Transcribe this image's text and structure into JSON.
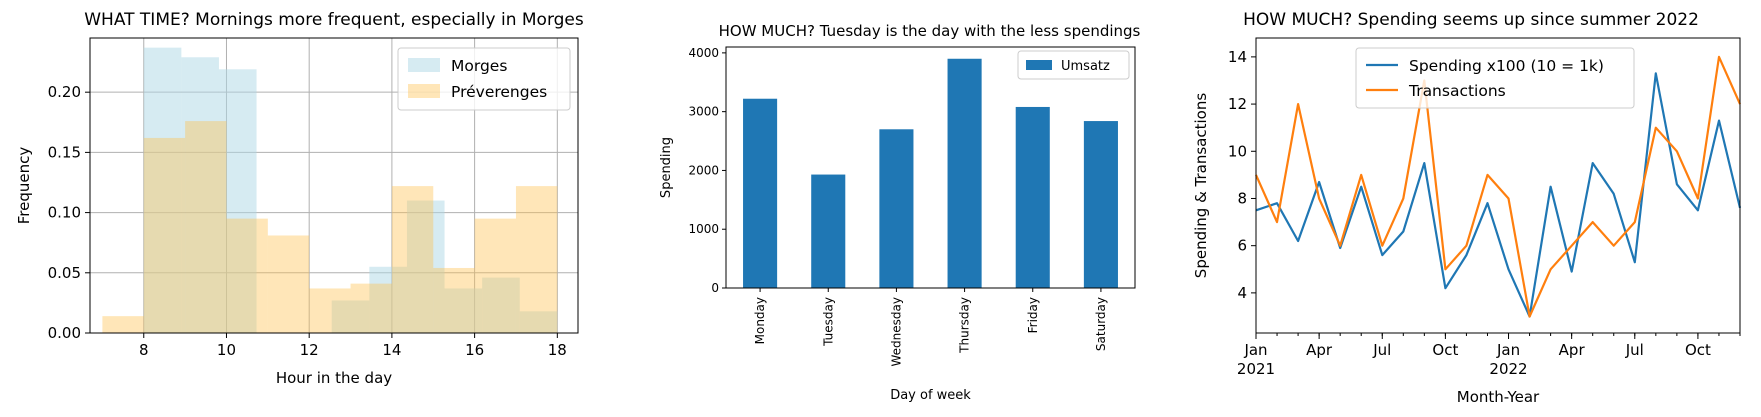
{
  "chart_data": [
    {
      "type": "histogram",
      "title": "WHAT TIME? Mornings more frequent, especially in Morges",
      "xlabel": "Hour in the day",
      "ylabel": "Frequency",
      "xlim": [
        6.7,
        18.5
      ],
      "ylim": [
        0,
        0.245
      ],
      "xticks": [
        8,
        10,
        12,
        14,
        16,
        18
      ],
      "yticks": [
        0.0,
        0.05,
        0.1,
        0.15,
        0.2
      ],
      "ytick_labels": [
        "0.00",
        "0.05",
        "0.10",
        "0.15",
        "0.20"
      ],
      "grid": true,
      "legend_position": "top-right",
      "series": [
        {
          "name": "Morges",
          "color": "#add8e6",
          "opacity": 0.5,
          "bins": [
            8.0,
            8.909,
            9.818,
            10.727,
            11.636,
            12.545,
            13.455,
            14.364,
            15.273,
            16.182,
            17.091,
            18.0
          ],
          "values": [
            0.237,
            0.229,
            0.219,
            0.0,
            0.0,
            0.027,
            0.055,
            0.11,
            0.037,
            0.046,
            0.018
          ]
        },
        {
          "name": "Préverenges",
          "color": "#ffc14d",
          "opacity": 0.4,
          "bins": [
            7.0,
            8.0,
            9.0,
            10.0,
            11.0,
            12.0,
            13.0,
            14.0,
            15.0,
            16.0,
            17.0,
            18.0
          ],
          "values": [
            0.014,
            0.162,
            0.176,
            0.095,
            0.081,
            0.037,
            0.041,
            0.122,
            0.054,
            0.095,
            0.122
          ]
        }
      ]
    },
    {
      "type": "bar",
      "title": "HOW MUCH? Tuesday is the day with the less spendings",
      "xlabel": "Day of week",
      "ylabel": "Spending",
      "categories": [
        "Monday",
        "Tuesday",
        "Wednesday",
        "Thursday",
        "Friday",
        "Saturday"
      ],
      "ylim": [
        0,
        4100
      ],
      "yticks": [
        0,
        1000,
        2000,
        3000,
        4000
      ],
      "grid": false,
      "legend_position": "top-right",
      "series": [
        {
          "name": "Umsatz",
          "color": "#1f77b4",
          "values": [
            3220,
            1930,
            2700,
            3900,
            3080,
            2840
          ]
        }
      ]
    },
    {
      "type": "line",
      "title": "HOW MUCH? Spending seems up since summer 2022",
      "xlabel": "Month-Year",
      "ylabel": "Spending & Transactions",
      "x": [
        "2021-01",
        "2021-02",
        "2021-03",
        "2021-04",
        "2021-05",
        "2021-06",
        "2021-07",
        "2021-08",
        "2021-09",
        "2021-10",
        "2021-11",
        "2021-12",
        "2022-01",
        "2022-02",
        "2022-03",
        "2022-04",
        "2022-05",
        "2022-06",
        "2022-07",
        "2022-08",
        "2022-09",
        "2022-10",
        "2022-11",
        "2022-12"
      ],
      "xtick_labels": [
        {
          "month": "2021-01",
          "label": "Jan",
          "year": "2021"
        },
        {
          "month": "2021-04",
          "label": "Apr",
          "year": ""
        },
        {
          "month": "2021-07",
          "label": "Jul",
          "year": ""
        },
        {
          "month": "2021-10",
          "label": "Oct",
          "year": ""
        },
        {
          "month": "2022-01",
          "label": "Jan",
          "year": "2022"
        },
        {
          "month": "2022-04",
          "label": "Apr",
          "year": ""
        },
        {
          "month": "2022-07",
          "label": "Jul",
          "year": ""
        },
        {
          "month": "2022-10",
          "label": "Oct",
          "year": ""
        }
      ],
      "ylim": [
        2.3,
        14.8
      ],
      "yticks": [
        4,
        6,
        8,
        10,
        12,
        14
      ],
      "grid": false,
      "legend_position": "top-center",
      "series": [
        {
          "name": "Spending x100 (10 = 1k)",
          "color": "#1f77b4",
          "values": [
            7.5,
            7.8,
            6.2,
            8.7,
            5.9,
            8.5,
            5.6,
            6.6,
            9.5,
            4.2,
            5.6,
            7.8,
            5.0,
            3.0,
            8.5,
            4.9,
            9.5,
            8.2,
            5.3,
            13.3,
            8.6,
            7.5,
            11.3,
            7.6
          ]
        },
        {
          "name": "Transactions",
          "color": "#ff7f0e",
          "values": [
            9.0,
            7.0,
            12.0,
            8.0,
            6.0,
            9.0,
            6.0,
            8.0,
            13.0,
            5.0,
            6.0,
            9.0,
            8.0,
            3.0,
            5.0,
            6.0,
            7.0,
            6.0,
            7.0,
            11.0,
            10.0,
            8.0,
            14.0,
            12.0
          ]
        }
      ]
    }
  ]
}
